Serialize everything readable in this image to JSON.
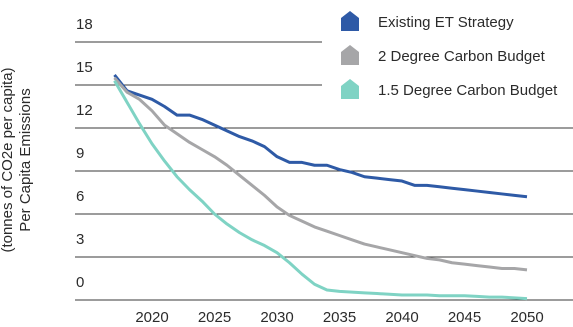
{
  "chart_data": {
    "type": "line",
    "ylabel": [
      "Per Capita Emissions",
      "(tonnes of CO2e per capita)"
    ],
    "x": [
      2017,
      2018,
      2019,
      2020,
      2021,
      2022,
      2023,
      2024,
      2025,
      2026,
      2027,
      2028,
      2029,
      2030,
      2031,
      2032,
      2033,
      2034,
      2035,
      2036,
      2037,
      2038,
      2039,
      2040,
      2041,
      2042,
      2043,
      2044,
      2045,
      2046,
      2047,
      2048,
      2049,
      2050
    ],
    "series": [
      {
        "name": "Existing ET Strategy",
        "color": "#2e5aa6",
        "values": [
          15.7,
          14.6,
          14.3,
          14.0,
          13.5,
          12.9,
          12.9,
          12.6,
          12.2,
          11.8,
          11.4,
          11.1,
          10.7,
          10.0,
          9.6,
          9.6,
          9.4,
          9.4,
          9.1,
          8.9,
          8.6,
          8.5,
          8.4,
          8.3,
          8.0,
          8.0,
          7.9,
          7.8,
          7.7,
          7.6,
          7.5,
          7.4,
          7.3,
          7.2
        ]
      },
      {
        "name": "2 Degree Carbon Budget",
        "color": "#a6a6a8",
        "values": [
          15.5,
          14.5,
          14.0,
          13.2,
          12.2,
          11.6,
          11.0,
          10.5,
          10.0,
          9.4,
          8.7,
          8.0,
          7.3,
          6.5,
          5.9,
          5.5,
          5.1,
          4.8,
          4.5,
          4.2,
          3.9,
          3.7,
          3.5,
          3.3,
          3.1,
          2.9,
          2.8,
          2.6,
          2.5,
          2.4,
          2.3,
          2.2,
          2.2,
          2.1
        ]
      },
      {
        "name": "1.5 Degree Carbon Budget",
        "color": "#7fd3c4",
        "values": [
          15.3,
          13.8,
          12.3,
          10.9,
          9.7,
          8.6,
          7.7,
          6.9,
          6.0,
          5.3,
          4.7,
          4.2,
          3.8,
          3.3,
          2.6,
          1.8,
          1.1,
          0.7,
          0.6,
          0.55,
          0.5,
          0.45,
          0.4,
          0.35,
          0.35,
          0.35,
          0.3,
          0.3,
          0.3,
          0.25,
          0.2,
          0.2,
          0.15,
          0.1
        ]
      }
    ],
    "xlim": [
      2014,
      2053
    ],
    "xticks": [
      2020,
      2025,
      2030,
      2035,
      2040,
      2045,
      2050
    ],
    "ylim": [
      0,
      18
    ],
    "yticks": [
      0,
      3,
      6,
      9,
      12,
      15,
      18
    ],
    "grid": true,
    "legend": "top-right"
  }
}
